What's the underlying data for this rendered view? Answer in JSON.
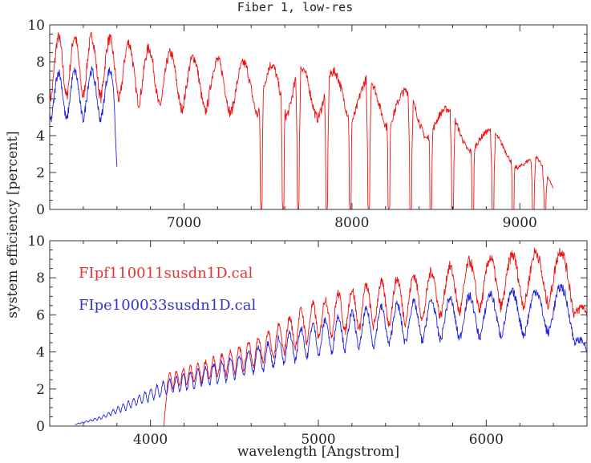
{
  "colors": {
    "red_series": "#ee1111",
    "blue_series": "#2222dd",
    "axis": "#333333",
    "text": "#222222"
  },
  "chart_data": [
    {
      "type": "line",
      "panel": "top",
      "title": "Fiber 1, low-res",
      "xlabel": "",
      "ylabel": "system efficiency [percent]",
      "xlim": [
        6200,
        9400
      ],
      "ylim": [
        0,
        10
      ],
      "x_major_ticks": [
        7000,
        8000,
        9000
      ],
      "x_tick_labels": [
        "7000",
        "8000",
        "9000"
      ],
      "x_minor_step": 200,
      "y_major_ticks": [
        0,
        2,
        4,
        6,
        8,
        10
      ],
      "y_tick_labels": [
        "0",
        "2",
        "4",
        "6",
        "8",
        "10"
      ],
      "y_minor_step": 0.5,
      "grid": false,
      "series": [
        {
          "name": "FIpf110011susdn1D.cal",
          "color": "red",
          "x_range": [
            6200,
            9200
          ],
          "envelope_x": [
            6200,
            6400,
            6600,
            6800,
            7000,
            7200,
            7400,
            7600,
            7800,
            8000,
            8200,
            8400,
            8600,
            8800,
            9000,
            9100,
            9200
          ],
          "envelope_peak": [
            9.3,
            9.4,
            9.2,
            8.7,
            8.3,
            8.1,
            7.9,
            7.8,
            7.6,
            7.3,
            6.9,
            6.1,
            5.3,
            4.4,
            3.4,
            2.9,
            1.3
          ],
          "fringe_trough_depth": 0.35,
          "deep_absorption_x": [
            7460,
            7590,
            7680,
            7850,
            7990,
            8100,
            8220,
            8350,
            8470,
            8600,
            8720,
            8840,
            8960,
            9080,
            9150
          ]
        },
        {
          "name": "FIpe100033susdn1D.cal",
          "color": "blue",
          "x_range": [
            6200,
            6600
          ],
          "envelope_x": [
            6200,
            6400,
            6580,
            6600
          ],
          "envelope_peak": [
            7.4,
            7.5,
            7.5,
            3.2
          ],
          "fringe_trough_depth": 0.35
        }
      ]
    },
    {
      "type": "line",
      "panel": "bottom",
      "title": "",
      "xlabel": "wavelength [Angstrom]",
      "ylabel": "system efficiency [percent]",
      "xlim": [
        3400,
        6600
      ],
      "ylim": [
        0,
        10
      ],
      "x_major_ticks": [
        4000,
        5000,
        6000
      ],
      "x_tick_labels": [
        "4000",
        "5000",
        "6000"
      ],
      "x_minor_step": 200,
      "y_major_ticks": [
        0,
        2,
        4,
        6,
        8,
        10
      ],
      "y_tick_labels": [
        "0",
        "2",
        "4",
        "6",
        "8",
        "10"
      ],
      "y_minor_step": 0.5,
      "grid": false,
      "legend": {
        "placement": "top-left",
        "entries": [
          "FIpf110011susdn1D.cal",
          "FIpe100033susdn1D.cal"
        ]
      },
      "series": [
        {
          "name": "FIpf110011susdn1D.cal",
          "color": "red",
          "x_range": [
            3500,
            6600
          ],
          "envelope_x": [
            3500,
            4080,
            4100,
            4300,
            4500,
            4700,
            4900,
            5100,
            5300,
            5500,
            5700,
            5900,
            6100,
            6300,
            6500,
            6600
          ],
          "envelope_peak": [
            0.0,
            0.0,
            2.8,
            3.4,
            4.1,
            5.0,
            6.3,
            7.1,
            7.6,
            8.0,
            8.4,
            8.9,
            9.2,
            9.4,
            9.5,
            6.0
          ],
          "fringe_trough_depth": 0.3
        },
        {
          "name": "FIpe100033susdn1D.cal",
          "color": "blue",
          "x_range": [
            3550,
            6600
          ],
          "envelope_x": [
            3550,
            3700,
            3900,
            4100,
            4300,
            4500,
            4700,
            4900,
            5100,
            5300,
            5500,
            5700,
            5900,
            6100,
            6300,
            6500,
            6600
          ],
          "envelope_peak": [
            0.1,
            0.5,
            1.5,
            2.5,
            3.1,
            3.7,
            4.5,
            5.3,
            5.9,
            6.3,
            6.6,
            6.8,
            7.0,
            7.2,
            7.3,
            7.6,
            4.0
          ],
          "fringe_trough_depth": 0.32
        }
      ]
    }
  ]
}
